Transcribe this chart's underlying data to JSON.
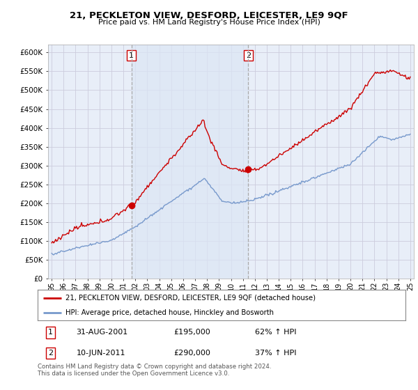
{
  "title": "21, PECKLETON VIEW, DESFORD, LEICESTER, LE9 9QF",
  "subtitle": "Price paid vs. HM Land Registry's House Price Index (HPI)",
  "ylabel_ticks": [
    "£0",
    "£50K",
    "£100K",
    "£150K",
    "£200K",
    "£250K",
    "£300K",
    "£350K",
    "£400K",
    "£450K",
    "£500K",
    "£550K",
    "£600K"
  ],
  "ytick_values": [
    0,
    50000,
    100000,
    150000,
    200000,
    250000,
    300000,
    350000,
    400000,
    450000,
    500000,
    550000,
    600000
  ],
  "ylim": [
    0,
    620000
  ],
  "xlim_left": 1994.7,
  "xlim_right": 2025.3,
  "hpi_color": "#7799cc",
  "price_color": "#cc0000",
  "vline_color": "#999999",
  "background_color": "#ffffff",
  "chart_bg_color": "#e8eef8",
  "grid_color": "#ccccdd",
  "legend_label_price": "21, PECKLETON VIEW, DESFORD, LEICESTER, LE9 9QF (detached house)",
  "legend_label_hpi": "HPI: Average price, detached house, Hinckley and Bosworth",
  "transaction1_date": "31-AUG-2001",
  "transaction1_price": "£195,000",
  "transaction1_hpi": "62% ↑ HPI",
  "transaction2_date": "10-JUN-2011",
  "transaction2_price": "£290,000",
  "transaction2_hpi": "37% ↑ HPI",
  "footer": "Contains HM Land Registry data © Crown copyright and database right 2024.\nThis data is licensed under the Open Government Licence v3.0.",
  "transaction1_x": 2001.67,
  "transaction2_x": 2011.44,
  "transaction1_y": 195000,
  "transaction2_y": 290000,
  "xtick_labels": [
    "95",
    "96",
    "97",
    "98",
    "99",
    "00",
    "01",
    "02",
    "03",
    "04",
    "05",
    "06",
    "07",
    "08",
    "09",
    "10",
    "11",
    "12",
    "13",
    "14",
    "15",
    "16",
    "17",
    "18",
    "19",
    "20",
    "21",
    "22",
    "23",
    "24",
    "25"
  ],
  "xtick_years": [
    1995,
    1996,
    1997,
    1998,
    1999,
    2000,
    2001,
    2002,
    2003,
    2004,
    2005,
    2006,
    2007,
    2008,
    2009,
    2010,
    2011,
    2012,
    2013,
    2014,
    2015,
    2016,
    2017,
    2018,
    2019,
    2020,
    2021,
    2022,
    2023,
    2024,
    2025
  ]
}
